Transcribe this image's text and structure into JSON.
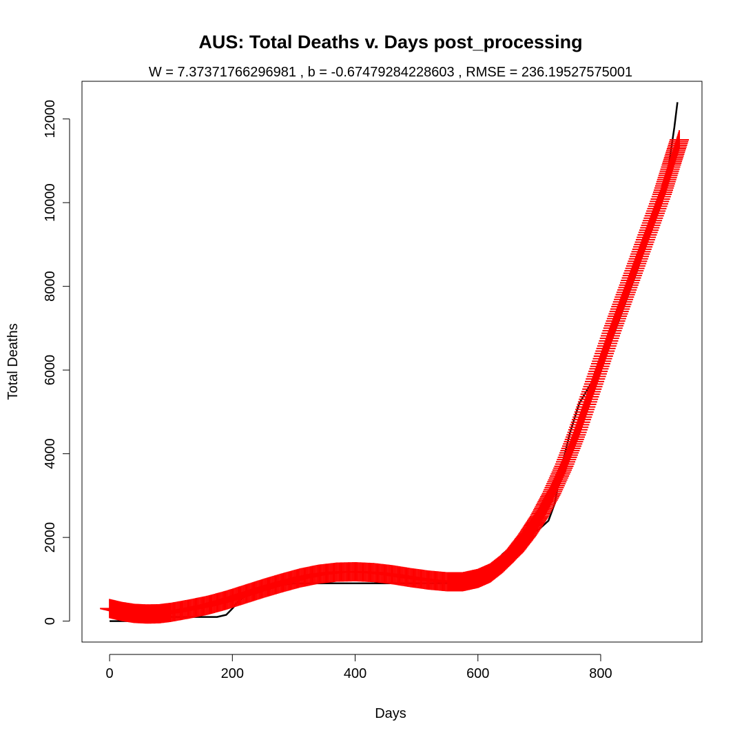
{
  "chart_data": {
    "type": "line",
    "title": "AUS: Total Deaths v. Days post_processing",
    "subtitle": "W = 7.37371766296981 , b = -0.67479284228603 , RMSE = 236.19527575001",
    "xlabel": "Days",
    "ylabel": "Total Deaths",
    "xlim": [
      -45,
      965
    ],
    "ylim": [
      -500,
      12900
    ],
    "x_ticks": [
      0,
      200,
      400,
      600,
      800
    ],
    "y_ticks": [
      0,
      2000,
      4000,
      6000,
      8000,
      10000,
      12000
    ],
    "grid": false,
    "series": [
      {
        "style": "solid line",
        "color": "#000000",
        "points": [
          [
            0,
            0
          ],
          [
            60,
            0
          ],
          [
            100,
            100
          ],
          [
            150,
            100
          ],
          [
            175,
            100
          ],
          [
            190,
            150
          ],
          [
            200,
            300
          ],
          [
            210,
            480
          ],
          [
            230,
            700
          ],
          [
            260,
            830
          ],
          [
            300,
            900
          ],
          [
            350,
            905
          ],
          [
            400,
            905
          ],
          [
            450,
            905
          ],
          [
            500,
            905
          ],
          [
            550,
            905
          ],
          [
            600,
            950
          ],
          [
            620,
            1200
          ],
          [
            640,
            1600
          ],
          [
            660,
            1850
          ],
          [
            680,
            2050
          ],
          [
            700,
            2200
          ],
          [
            715,
            2400
          ],
          [
            725,
            2800
          ],
          [
            735,
            3600
          ],
          [
            750,
            4500
          ],
          [
            765,
            5200
          ],
          [
            785,
            5700
          ],
          [
            805,
            6200
          ],
          [
            830,
            7200
          ],
          [
            860,
            8400
          ],
          [
            890,
            9700
          ],
          [
            910,
            10800
          ],
          [
            920,
            11800
          ],
          [
            925,
            12400
          ]
        ]
      },
      {
        "style": "plus markers",
        "color": "#ff0000",
        "points": [
          [
            0,
            300
          ],
          [
            20,
            230
          ],
          [
            40,
            185
          ],
          [
            60,
            170
          ],
          [
            80,
            175
          ],
          [
            100,
            210
          ],
          [
            130,
            290
          ],
          [
            160,
            380
          ],
          [
            190,
            500
          ],
          [
            220,
            640
          ],
          [
            250,
            780
          ],
          [
            280,
            910
          ],
          [
            310,
            1030
          ],
          [
            340,
            1120
          ],
          [
            370,
            1170
          ],
          [
            400,
            1180
          ],
          [
            430,
            1160
          ],
          [
            460,
            1110
          ],
          [
            490,
            1040
          ],
          [
            520,
            980
          ],
          [
            550,
            940
          ],
          [
            575,
            940
          ],
          [
            600,
            1020
          ],
          [
            620,
            1150
          ],
          [
            640,
            1380
          ],
          [
            660,
            1670
          ],
          [
            680,
            2050
          ],
          [
            700,
            2500
          ],
          [
            720,
            3050
          ],
          [
            740,
            3700
          ],
          [
            760,
            4450
          ],
          [
            780,
            5300
          ],
          [
            800,
            6150
          ],
          [
            820,
            7000
          ],
          [
            840,
            7800
          ],
          [
            860,
            8600
          ],
          [
            880,
            9400
          ],
          [
            900,
            10200
          ],
          [
            915,
            10900
          ],
          [
            928,
            11500
          ]
        ]
      }
    ]
  }
}
